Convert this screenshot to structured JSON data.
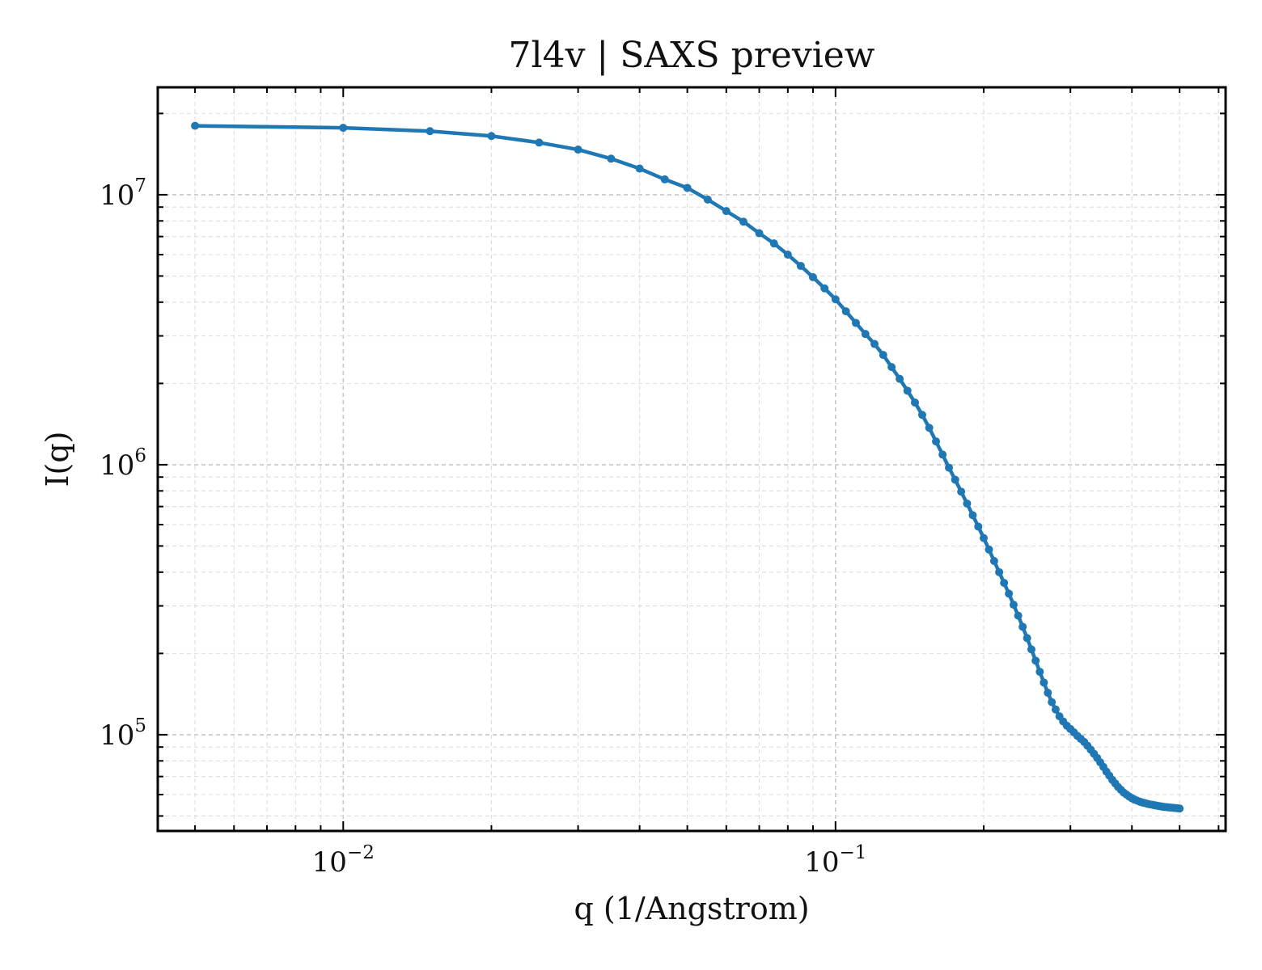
{
  "chart_data": {
    "type": "line",
    "title": "7l4v | SAXS preview",
    "xlabel": "q (1/Angstrom)",
    "ylabel": "I(q)",
    "x_scale": "log",
    "y_scale": "log",
    "xlim": [
      0.0042,
      0.62
    ],
    "ylim": [
      44000,
      25000000
    ],
    "grid": true,
    "legend": "none",
    "x_ticks": [
      {
        "value": 0.01,
        "base": "10",
        "exp": "−2"
      },
      {
        "value": 0.1,
        "base": "10",
        "exp": "−1"
      }
    ],
    "y_ticks": [
      {
        "value": 100000,
        "base": "10",
        "exp": "5"
      },
      {
        "value": 1000000,
        "base": "10",
        "exp": "6"
      },
      {
        "value": 10000000,
        "base": "10",
        "exp": "7"
      }
    ],
    "series": [
      {
        "color": "#1f77b4",
        "x": [
          0.005,
          0.01,
          0.015,
          0.02,
          0.025,
          0.03,
          0.035,
          0.04,
          0.045,
          0.05,
          0.055,
          0.06,
          0.065,
          0.07,
          0.075,
          0.08,
          0.085,
          0.09,
          0.095,
          0.1,
          0.105,
          0.11,
          0.115,
          0.12,
          0.125,
          0.13,
          0.135,
          0.14,
          0.145,
          0.15,
          0.155,
          0.16,
          0.165,
          0.17,
          0.175,
          0.18,
          0.185,
          0.19,
          0.195,
          0.2,
          0.205,
          0.21,
          0.215,
          0.22,
          0.225,
          0.23,
          0.235,
          0.24,
          0.245,
          0.25,
          0.255,
          0.26,
          0.265,
          0.27,
          0.275,
          0.28,
          0.285,
          0.29,
          0.295,
          0.3,
          0.305,
          0.31,
          0.315,
          0.32,
          0.325,
          0.33,
          0.335,
          0.34,
          0.345,
          0.35,
          0.355,
          0.36,
          0.365,
          0.37,
          0.375,
          0.38,
          0.385,
          0.39,
          0.395,
          0.4,
          0.405,
          0.41,
          0.415,
          0.42,
          0.425,
          0.43,
          0.435,
          0.44,
          0.445,
          0.45,
          0.455,
          0.46,
          0.465,
          0.47,
          0.475,
          0.48,
          0.485,
          0.49,
          0.495,
          0.5
        ],
        "y": [
          18000000,
          17700000,
          17200000,
          16500000,
          15600000,
          14700000,
          13600000,
          12500000,
          11400000,
          10600000,
          9600000,
          8700000,
          7950000,
          7200000,
          6600000,
          6000000,
          5450000,
          4950000,
          4500000,
          4100000,
          3700000,
          3350000,
          3050000,
          2800000,
          2550000,
          2300000,
          2080000,
          1880000,
          1700000,
          1530000,
          1370000,
          1220000,
          1090000,
          975000,
          880000,
          795000,
          718000,
          650000,
          590000,
          535000,
          485000,
          440000,
          400000,
          365000,
          333000,
          303000,
          276000,
          251000,
          228000,
          207000,
          188000,
          171000,
          156000,
          143000,
          132000,
          124000,
          117000,
          112000,
          108000,
          105000,
          102000,
          99000,
          96500,
          94000,
          91000,
          88000,
          85000,
          82000,
          79000,
          76000,
          73000,
          70500,
          68000,
          66000,
          64000,
          62500,
          61000,
          60000,
          59000,
          58200,
          57500,
          57000,
          56500,
          56100,
          55800,
          55500,
          55200,
          55000,
          54800,
          54600,
          54400,
          54200,
          54000,
          53900,
          53800,
          53700,
          53600,
          53500,
          53400,
          53300
        ]
      }
    ]
  }
}
